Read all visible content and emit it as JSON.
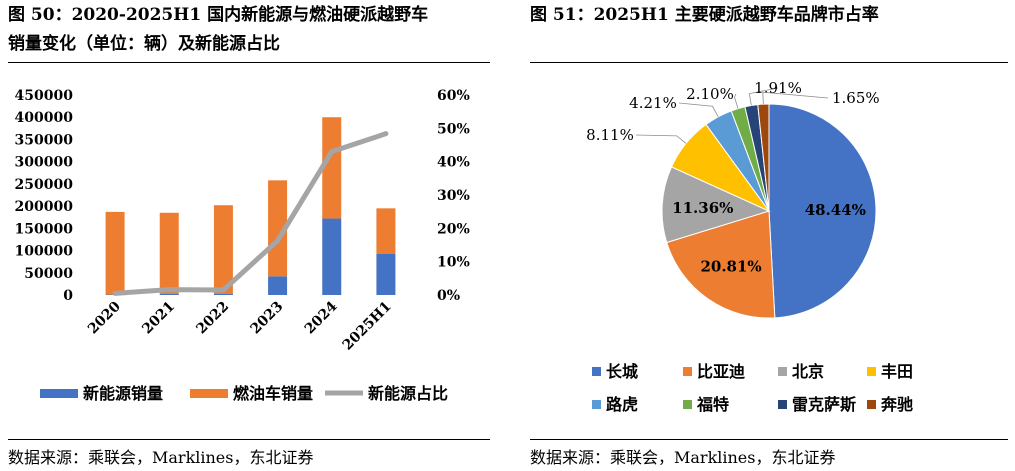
{
  "left": {
    "title_line1": "图 50：2020-2025H1 国内新能源与燃油硬派越野车",
    "title_line2": "销量变化（单位：辆）及新能源占比",
    "source": "数据来源：乘联会，Marklines，东北证券"
  },
  "right": {
    "title": "图 51：2025H1 主要硬派越野车品牌市占率",
    "source": "数据来源：乘联会，Marklines，东北证券"
  },
  "chart_data": [
    {
      "type": "bar",
      "stacked": true,
      "categories": [
        "2020",
        "2021",
        "2022",
        "2023",
        "2024",
        "2025H1"
      ],
      "series": [
        {
          "name": "新能源销量",
          "axis": "left",
          "color": "#4472C4",
          "values": [
            1000,
            3000,
            3000,
            42000,
            172000,
            93000
          ]
        },
        {
          "name": "燃油车销量",
          "axis": "left",
          "color": "#ED7D31",
          "values": [
            186000,
            182000,
            199000,
            216000,
            228000,
            102000
          ]
        },
        {
          "name": "新能源占比",
          "axis": "right",
          "type": "line",
          "color": "#A5A5A5",
          "values": [
            0.5,
            1.6,
            1.5,
            16.3,
            43.0,
            48.4
          ]
        }
      ],
      "y_left": {
        "min": 0,
        "max": 450000,
        "step": 50000,
        "ticks": [
          "0",
          "50000",
          "100000",
          "150000",
          "200000",
          "250000",
          "300000",
          "350000",
          "400000",
          "450000"
        ]
      },
      "y_right": {
        "min": 0,
        "max": 60,
        "step": 10,
        "ticks": [
          "0%",
          "10%",
          "20%",
          "30%",
          "40%",
          "50%",
          "60%"
        ]
      },
      "grid": false,
      "legend_position": "bottom"
    },
    {
      "type": "pie",
      "start": "top",
      "direction": "clockwise",
      "slices": [
        {
          "label": "长城",
          "value": 48.44,
          "text": "48.44%",
          "color": "#4472C4"
        },
        {
          "label": "比亚迪",
          "value": 20.81,
          "text": "20.81%",
          "color": "#ED7D31"
        },
        {
          "label": "北京",
          "value": 11.36,
          "text": "11.36%",
          "color": "#A5A5A5"
        },
        {
          "label": "丰田",
          "value": 8.11,
          "text": "8.11%",
          "color": "#FFC000"
        },
        {
          "label": "路虎",
          "value": 4.21,
          "text": "4.21%",
          "color": "#5B9BD5"
        },
        {
          "label": "福特",
          "value": 2.1,
          "text": "2.10%",
          "color": "#70AD47"
        },
        {
          "label": "雷克萨斯",
          "value": 1.91,
          "text": "1.91%",
          "color": "#264478"
        },
        {
          "label": "奔驰",
          "value": 1.65,
          "text": "1.65%",
          "color": "#9E480E"
        }
      ],
      "legend_position": "bottom"
    }
  ]
}
